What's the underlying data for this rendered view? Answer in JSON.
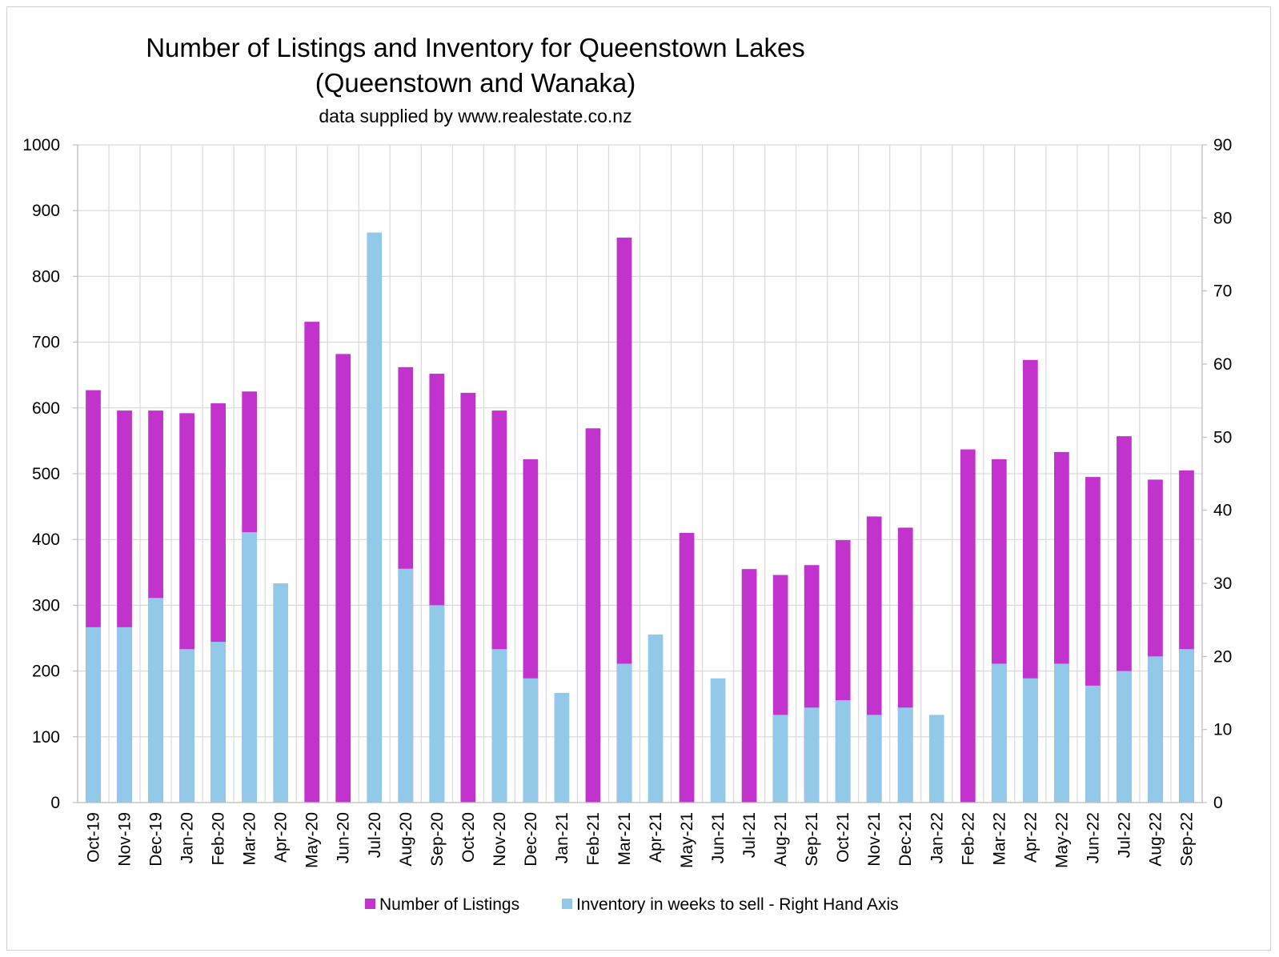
{
  "chart_data": {
    "type": "bar",
    "title_line1": "Number of Listings and Inventory for Queenstown Lakes",
    "title_line2": "(Queenstown and Wanaka)",
    "subtitle": "data supplied by www.realestate.co.nz",
    "categories": [
      "Oct-19",
      "Nov-19",
      "Dec-19",
      "Jan-20",
      "Feb-20",
      "Mar-20",
      "Apr-20",
      "May-20",
      "Jun-20",
      "Jul-20",
      "Aug-20",
      "Sep-20",
      "Oct-20",
      "Nov-20",
      "Dec-20",
      "Jan-21",
      "Feb-21",
      "Mar-21",
      "Apr-21",
      "May-21",
      "Jun-21",
      "Jul-21",
      "Aug-21",
      "Sep-21",
      "Oct-21",
      "Nov-21",
      "Dec-21",
      "Jan-22",
      "Feb-22",
      "Mar-22",
      "Apr-22",
      "May-22",
      "Jun-22",
      "Jul-22",
      "Aug-22",
      "Sep-22"
    ],
    "series": [
      {
        "name": "Number of Listings",
        "axis": "left",
        "color": "#c133cc",
        "values": [
          627,
          596,
          596,
          592,
          607,
          625,
          null,
          731,
          682,
          null,
          662,
          652,
          623,
          596,
          522,
          null,
          569,
          859,
          null,
          410,
          null,
          355,
          346,
          361,
          399,
          435,
          418,
          null,
          537,
          522,
          673,
          533,
          495,
          557,
          491,
          505
        ]
      },
      {
        "name": "Inventory in weeks to sell - Right Hand Axis",
        "axis": "right",
        "color": "#92c9e9",
        "values": [
          24,
          24,
          28,
          21,
          22,
          37,
          30,
          null,
          null,
          78,
          32,
          27,
          null,
          21,
          17,
          15,
          null,
          19,
          23,
          null,
          17,
          null,
          12,
          13,
          14,
          12,
          13,
          12,
          null,
          19,
          17,
          19,
          16,
          18,
          20,
          21
        ]
      }
    ],
    "y_left": {
      "min": 0,
      "max": 1000,
      "ticks": [
        0,
        100,
        200,
        300,
        400,
        500,
        600,
        700,
        800,
        900,
        1000
      ]
    },
    "y_right": {
      "min": 0,
      "max": 90,
      "ticks": [
        0,
        10,
        20,
        30,
        40,
        50,
        60,
        70,
        80,
        90
      ]
    },
    "grid": true,
    "legend_position": "bottom"
  }
}
